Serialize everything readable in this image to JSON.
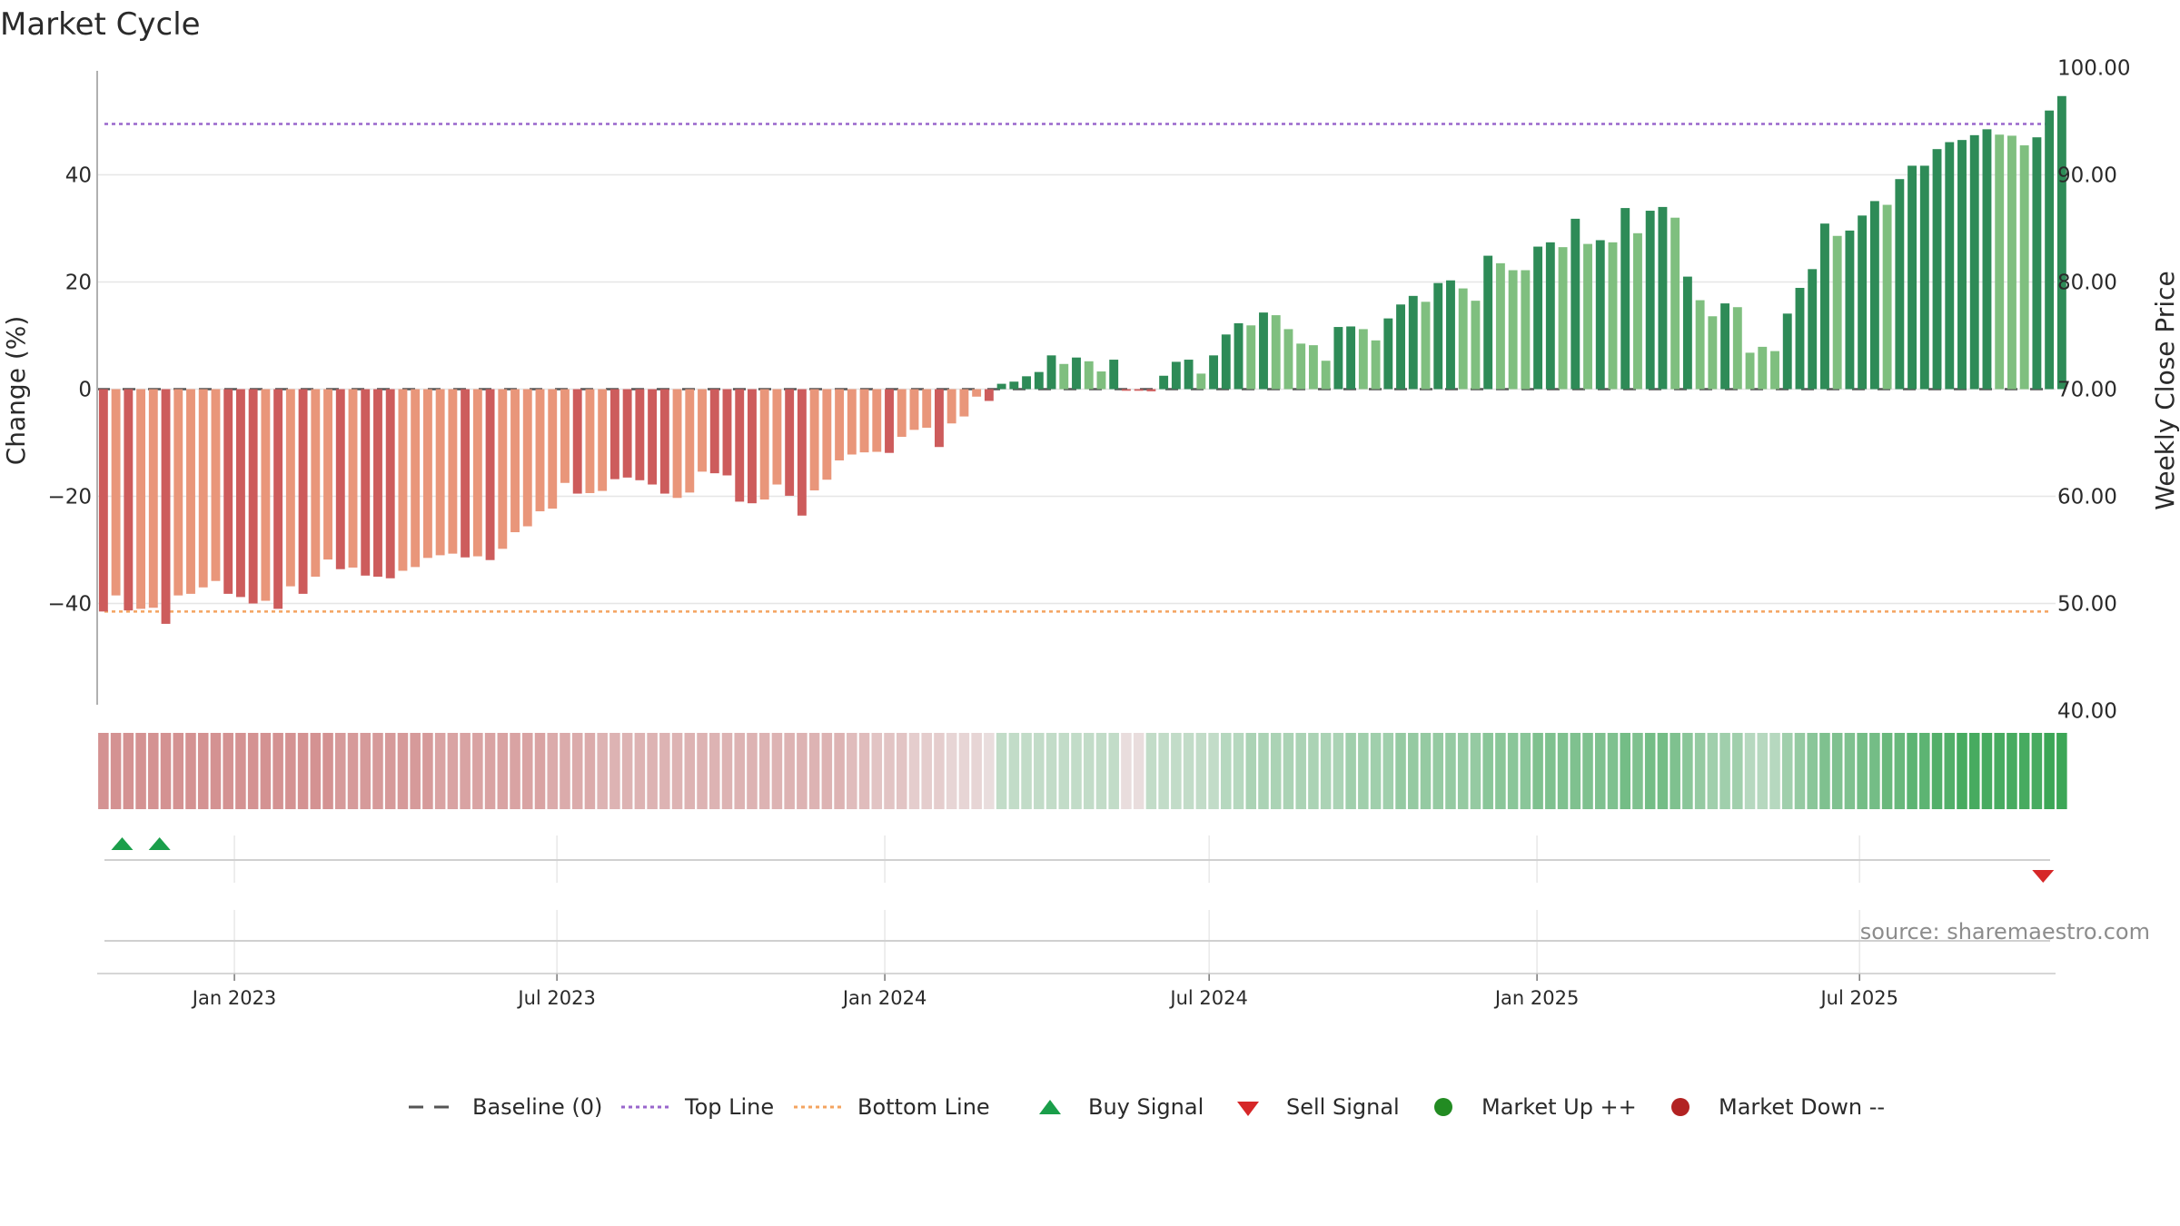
{
  "title": "Market Cycle",
  "source": "source: sharemaestro.com",
  "colors": {
    "strong_up": "#2e8b57",
    "weak_up": "#7fbf7f",
    "strong_down": "#cd5c5c",
    "weak_down": "#e9967a",
    "top_line": "#9966cc",
    "bottom_line": "#f4a460",
    "baseline": "#555555",
    "buy": "#1a9e4a",
    "sell": "#d62728",
    "market_up": "#228b22",
    "market_down": "#b22222"
  },
  "legend": [
    {
      "label": "Baseline (0)",
      "icon": "dash-line-icon",
      "color": "#555555"
    },
    {
      "label": "Top Line",
      "icon": "dotted-line-icon",
      "color": "#9966cc"
    },
    {
      "label": "Bottom Line",
      "icon": "dotted-line-icon",
      "color": "#f4a460"
    },
    {
      "label": "Buy Signal",
      "icon": "triangle-up-icon",
      "color": "#1a9e4a"
    },
    {
      "label": "Sell Signal",
      "icon": "triangle-down-icon",
      "color": "#d62728"
    },
    {
      "label": "Market Up ++",
      "icon": "circle-icon",
      "color": "#228b22"
    },
    {
      "label": "Market Down --",
      "icon": "circle-icon",
      "color": "#b22222"
    }
  ],
  "chart_data": {
    "type": "bar",
    "title": "Market Cycle",
    "ylabel": "Change (%)",
    "y2label": "Weekly Close Price",
    "ylim": [
      -59,
      59
    ],
    "y_ticks": [
      -40,
      -20,
      0,
      20,
      40
    ],
    "y_tick_labels": [
      "−40",
      "−20",
      "0",
      "20",
      "40"
    ],
    "y2_ticks": [
      40,
      50,
      60,
      70,
      80,
      90,
      100
    ],
    "y2_tick_labels": [
      "40.00",
      "50.00",
      "60.00",
      "70.00",
      "80.00",
      "90.00",
      "100.00"
    ],
    "y2_zero_price": 70,
    "y2_pct_per_unit": 2.0,
    "top_line": 49.5,
    "bottom_line": -41.5,
    "x_start": "2022-10-16",
    "x_end": "2025-10-19",
    "x_ticks": [
      "2023-01-01",
      "2023-07-01",
      "2024-01-01",
      "2024-07-01",
      "2025-01-01",
      "2025-07-01"
    ],
    "x_tick_labels": [
      "Jan 2023",
      "Jul 2023",
      "Jan 2024",
      "Jul 2024",
      "Jan 2025",
      "Jul 2025"
    ],
    "first_week": "2022-10-16",
    "week_values": [
      -41.5,
      -38.5,
      -41.3,
      -41.0,
      -40.8,
      -43.8,
      -38.5,
      -38.2,
      -37.0,
      -35.8,
      -38.2,
      -38.8,
      -40.0,
      -39.5,
      -41.0,
      -36.8,
      -38.2,
      -35.0,
      -31.8,
      -33.6,
      -33.3,
      -34.8,
      -35.0,
      -35.3,
      -33.9,
      -33.2,
      -31.5,
      -31.0,
      -30.7,
      -31.4,
      -31.2,
      -31.9,
      -29.8,
      -26.7,
      -25.6,
      -22.8,
      -22.3,
      -17.5,
      -19.5,
      -19.4,
      -19.0,
      -16.8,
      -16.5,
      -17.0,
      -17.8,
      -19.5,
      -20.3,
      -19.3,
      -15.4,
      -15.7,
      -16.1,
      -21.0,
      -21.3,
      -20.6,
      -17.8,
      -19.9,
      -23.6,
      -18.9,
      -16.9,
      -13.3,
      -12.2,
      -11.8,
      -11.7,
      -11.9,
      -8.9,
      -7.6,
      -7.2,
      -10.8,
      -6.4,
      -5.1,
      -1.4,
      -2.2,
      1.0,
      1.4,
      2.4,
      3.2,
      6.3,
      4.7,
      5.9,
      5.2,
      3.3,
      5.5,
      -0.3,
      -0.3,
      -0.4,
      2.5,
      5.1,
      5.5,
      2.9,
      6.3,
      10.2,
      12.3,
      11.9,
      14.3,
      13.8,
      11.2,
      8.5,
      8.2,
      5.3,
      11.6,
      11.7,
      11.2,
      9.1,
      13.2,
      15.8,
      17.4,
      16.3,
      19.8,
      20.3,
      18.8,
      16.5,
      24.9,
      23.5,
      22.2,
      22.2,
      26.6,
      27.4,
      26.5,
      31.8,
      27.1,
      27.8,
      27.4,
      33.8,
      29.1,
      33.3,
      34.0,
      32.0,
      21.0,
      16.6,
      13.6,
      16.0,
      15.3,
      6.8,
      7.9,
      7.1,
      14.1,
      18.9,
      22.4,
      30.9,
      28.6,
      29.6,
      32.4,
      35.1,
      34.4,
      39.2,
      41.7,
      41.7,
      44.8,
      46.1,
      46.5,
      47.4,
      48.5,
      47.5,
      47.3,
      45.5,
      47.0,
      52.0,
      54.7
    ],
    "week_strength": [
      1,
      0,
      1,
      0,
      0,
      1,
      0,
      0,
      0,
      0,
      1,
      1,
      1,
      0,
      1,
      0,
      1,
      0,
      0,
      1,
      0,
      1,
      1,
      1,
      0,
      0,
      0,
      0,
      0,
      1,
      0,
      1,
      0,
      0,
      0,
      0,
      0,
      0,
      1,
      0,
      0,
      1,
      1,
      1,
      1,
      1,
      0,
      0,
      0,
      1,
      1,
      1,
      1,
      0,
      0,
      1,
      1,
      0,
      0,
      0,
      0,
      0,
      0,
      1,
      0,
      0,
      0,
      1,
      0,
      0,
      0,
      1,
      1,
      1,
      1,
      1,
      1,
      0,
      1,
      0,
      0,
      1,
      1,
      1,
      1,
      1,
      1,
      1,
      0,
      1,
      1,
      1,
      0,
      1,
      0,
      0,
      0,
      0,
      0,
      1,
      1,
      0,
      0,
      1,
      1,
      1,
      0,
      1,
      1,
      0,
      0,
      1,
      0,
      0,
      0,
      1,
      1,
      0,
      1,
      0,
      1,
      0,
      1,
      0,
      1,
      1,
      0,
      1,
      0,
      0,
      1,
      0,
      0,
      0,
      0,
      1,
      1,
      1,
      1,
      0,
      1,
      1,
      1,
      0,
      1,
      1,
      1,
      1,
      1,
      1,
      1,
      1,
      0,
      0,
      0,
      1,
      1,
      1
    ],
    "heat_values": [
      -0.55,
      -0.55,
      -0.55,
      -0.55,
      -0.55,
      -0.55,
      -0.55,
      -0.55,
      -0.55,
      -0.55,
      -0.55,
      -0.55,
      -0.55,
      -0.55,
      -0.55,
      -0.55,
      -0.55,
      -0.55,
      -0.55,
      -0.5,
      -0.5,
      -0.5,
      -0.5,
      -0.5,
      -0.5,
      -0.5,
      -0.5,
      -0.45,
      -0.45,
      -0.45,
      -0.45,
      -0.45,
      -0.45,
      -0.45,
      -0.45,
      -0.45,
      -0.4,
      -0.4,
      -0.4,
      -0.4,
      -0.35,
      -0.35,
      -0.35,
      -0.35,
      -0.35,
      -0.35,
      -0.35,
      -0.35,
      -0.35,
      -0.35,
      -0.35,
      -0.35,
      -0.35,
      -0.35,
      -0.35,
      -0.35,
      -0.35,
      -0.35,
      -0.35,
      -0.35,
      -0.3,
      -0.3,
      -0.25,
      -0.25,
      -0.25,
      -0.2,
      -0.2,
      -0.2,
      -0.15,
      -0.15,
      -0.15,
      -0.1,
      0.2,
      0.2,
      0.2,
      0.2,
      0.2,
      0.2,
      0.2,
      0.2,
      0.2,
      0.2,
      -0.1,
      -0.1,
      0.2,
      0.2,
      0.2,
      0.2,
      0.2,
      0.2,
      0.25,
      0.25,
      0.3,
      0.3,
      0.3,
      0.3,
      0.3,
      0.3,
      0.3,
      0.3,
      0.35,
      0.35,
      0.35,
      0.35,
      0.4,
      0.4,
      0.4,
      0.4,
      0.4,
      0.4,
      0.4,
      0.45,
      0.45,
      0.45,
      0.45,
      0.5,
      0.5,
      0.5,
      0.5,
      0.5,
      0.5,
      0.5,
      0.55,
      0.5,
      0.55,
      0.55,
      0.5,
      0.45,
      0.4,
      0.35,
      0.35,
      0.35,
      0.25,
      0.25,
      0.25,
      0.35,
      0.4,
      0.45,
      0.5,
      0.5,
      0.5,
      0.55,
      0.55,
      0.6,
      0.6,
      0.65,
      0.65,
      0.7,
      0.7,
      0.75,
      0.75,
      0.75,
      0.75,
      0.75,
      0.75,
      0.75,
      0.8,
      0.8
    ],
    "buy_signals": [
      {
        "date": "2022-10-30"
      },
      {
        "date": "2022-11-20"
      }
    ],
    "sell_signals": [
      {
        "date": "2025-10-12"
      }
    ],
    "legend": [
      "Baseline (0)",
      "Top Line",
      "Bottom Line",
      "Buy Signal",
      "Sell Signal",
      "Market Up ++",
      "Market Down --"
    ],
    "legend_position": "bottom-center",
    "grid": true
  }
}
